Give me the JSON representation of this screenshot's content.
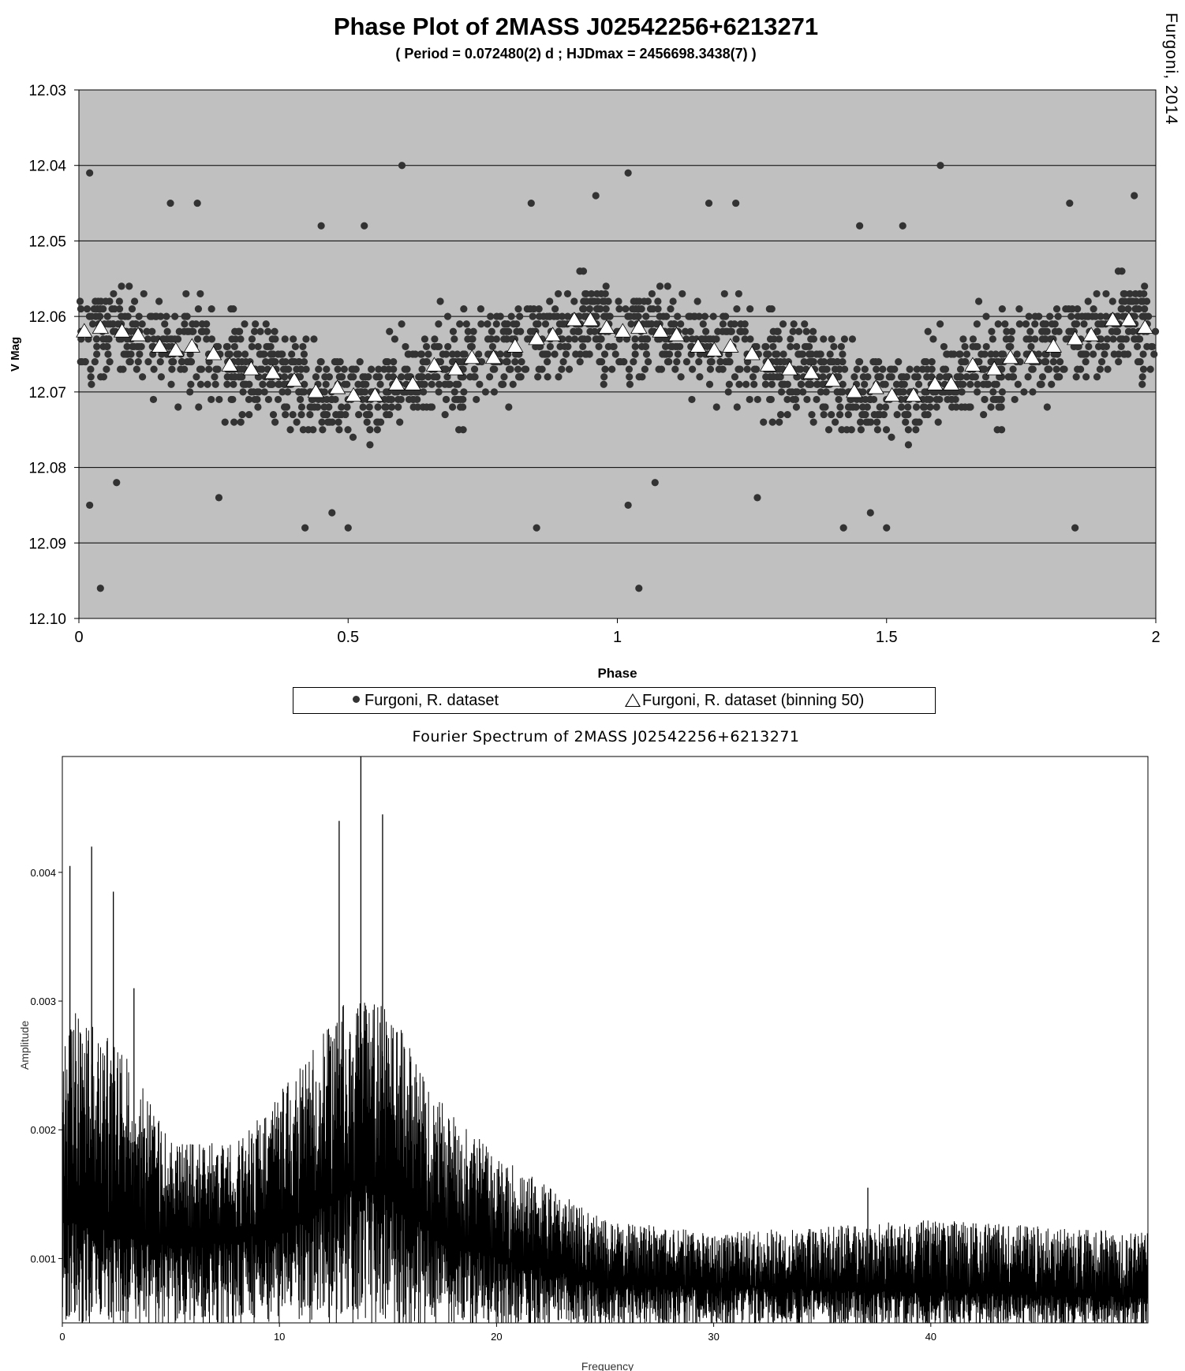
{
  "credit": "Furgoni, 2014",
  "chart_data": [
    {
      "type": "scatter",
      "title": "Phase Plot of 2MASS J02542256+6213271",
      "subtitle": "( Period = 0.072480(2) d ; HJDmax = 2456698.3438(7) )",
      "xlabel": "Phase",
      "ylabel": "V Mag",
      "xlim": [
        0,
        2
      ],
      "ylim": [
        12.03,
        12.1
      ],
      "y_inverted": true,
      "x_ticks": [
        "0",
        "0.5",
        "1",
        "1.5",
        "2"
      ],
      "y_ticks": [
        "12.03",
        "12.04",
        "12.05",
        "12.06",
        "12.07",
        "12.08",
        "12.09",
        "12.10"
      ],
      "grid": "horizontal",
      "background": "#c0c0c0",
      "legend_position": "bottom",
      "series": [
        {
          "name": "Furgoni, R. dataset",
          "marker": "filled-circle",
          "color": "#333333",
          "approx_count": 900,
          "mean_curve_ref": "binned",
          "scatter_range": [
            12.052,
            12.082
          ],
          "outliers": [
            {
              "x": 0.02,
              "y": 12.041
            },
            {
              "x": 0.02,
              "y": 12.085
            },
            {
              "x": 0.04,
              "y": 12.096
            },
            {
              "x": 0.07,
              "y": 12.082
            },
            {
              "x": 0.17,
              "y": 12.045
            },
            {
              "x": 0.22,
              "y": 12.045
            },
            {
              "x": 0.26,
              "y": 12.084
            },
            {
              "x": 0.42,
              "y": 12.088
            },
            {
              "x": 0.45,
              "y": 12.048
            },
            {
              "x": 0.47,
              "y": 12.086
            },
            {
              "x": 0.5,
              "y": 12.088
            },
            {
              "x": 0.53,
              "y": 12.048
            },
            {
              "x": 0.6,
              "y": 12.04
            },
            {
              "x": 0.85,
              "y": 12.088
            },
            {
              "x": 0.84,
              "y": 12.045
            },
            {
              "x": 0.96,
              "y": 12.044
            },
            {
              "x": 1.02,
              "y": 12.041
            },
            {
              "x": 1.02,
              "y": 12.085
            },
            {
              "x": 1.04,
              "y": 12.096
            },
            {
              "x": 1.07,
              "y": 12.082
            },
            {
              "x": 1.17,
              "y": 12.045
            },
            {
              "x": 1.22,
              "y": 12.045
            },
            {
              "x": 1.26,
              "y": 12.084
            },
            {
              "x": 1.42,
              "y": 12.088
            },
            {
              "x": 1.45,
              "y": 12.048
            },
            {
              "x": 1.47,
              "y": 12.086
            },
            {
              "x": 1.5,
              "y": 12.088
            },
            {
              "x": 1.53,
              "y": 12.048
            },
            {
              "x": 1.6,
              "y": 12.04
            },
            {
              "x": 1.85,
              "y": 12.088
            },
            {
              "x": 1.84,
              "y": 12.045
            },
            {
              "x": 1.96,
              "y": 12.044
            }
          ]
        },
        {
          "name": "Furgoni, R. dataset (binning 50)",
          "marker": "open-triangle",
          "color": "#ffffff",
          "points": [
            {
              "x": 0.01,
              "y": 12.062
            },
            {
              "x": 0.04,
              "y": 12.0615
            },
            {
              "x": 0.08,
              "y": 12.062
            },
            {
              "x": 0.11,
              "y": 12.0625
            },
            {
              "x": 0.15,
              "y": 12.064
            },
            {
              "x": 0.18,
              "y": 12.0645
            },
            {
              "x": 0.21,
              "y": 12.064
            },
            {
              "x": 0.25,
              "y": 12.065
            },
            {
              "x": 0.28,
              "y": 12.0665
            },
            {
              "x": 0.32,
              "y": 12.067
            },
            {
              "x": 0.36,
              "y": 12.0675
            },
            {
              "x": 0.4,
              "y": 12.0685
            },
            {
              "x": 0.44,
              "y": 12.07
            },
            {
              "x": 0.48,
              "y": 12.0695
            },
            {
              "x": 0.51,
              "y": 12.0705
            },
            {
              "x": 0.55,
              "y": 12.0705
            },
            {
              "x": 0.59,
              "y": 12.069
            },
            {
              "x": 0.62,
              "y": 12.069
            },
            {
              "x": 0.66,
              "y": 12.0665
            },
            {
              "x": 0.7,
              "y": 12.067
            },
            {
              "x": 0.73,
              "y": 12.0655
            },
            {
              "x": 0.77,
              "y": 12.0655
            },
            {
              "x": 0.81,
              "y": 12.064
            },
            {
              "x": 0.85,
              "y": 12.063
            },
            {
              "x": 0.88,
              "y": 12.0625
            },
            {
              "x": 0.92,
              "y": 12.0605
            },
            {
              "x": 0.95,
              "y": 12.0605
            },
            {
              "x": 0.98,
              "y": 12.0615
            }
          ],
          "repeats_with_period": 1
        }
      ]
    },
    {
      "type": "line",
      "title": "Fourier Spectrum of 2MASS J02542256+6213271",
      "xlabel": "Frequency",
      "ylabel": "Amplitude",
      "xlim": [
        0,
        50
      ],
      "ylim": [
        0.0005,
        0.0049
      ],
      "x_ticks": [
        "0",
        "10",
        "20",
        "30",
        "40"
      ],
      "y_ticks": [
        "0.001",
        "0.002",
        "0.003",
        "0.004"
      ],
      "grid": "off",
      "peaks": [
        {
          "x": 0.35,
          "y": 0.00405
        },
        {
          "x": 1.35,
          "y": 0.0042
        },
        {
          "x": 2.35,
          "y": 0.00385
        },
        {
          "x": 3.3,
          "y": 0.0031
        },
        {
          "x": 12.75,
          "y": 0.0044
        },
        {
          "x": 13.75,
          "y": 0.0049
        },
        {
          "x": 14.75,
          "y": 0.00445
        },
        {
          "x": 37.1,
          "y": 0.00155
        }
      ],
      "envelope": [
        {
          "x": 0,
          "y": 0.003
        },
        {
          "x": 3,
          "y": 0.0026
        },
        {
          "x": 5,
          "y": 0.0019
        },
        {
          "x": 8,
          "y": 0.0019
        },
        {
          "x": 11,
          "y": 0.0025
        },
        {
          "x": 13,
          "y": 0.003
        },
        {
          "x": 15,
          "y": 0.003
        },
        {
          "x": 17,
          "y": 0.0023
        },
        {
          "x": 20,
          "y": 0.0018
        },
        {
          "x": 25,
          "y": 0.0013
        },
        {
          "x": 30,
          "y": 0.0012
        },
        {
          "x": 40,
          "y": 0.0013
        },
        {
          "x": 50,
          "y": 0.0012
        }
      ],
      "baseline": [
        {
          "x": 0,
          "y": 0.0013
        },
        {
          "x": 5,
          "y": 0.0011
        },
        {
          "x": 10,
          "y": 0.0012
        },
        {
          "x": 14,
          "y": 0.0016
        },
        {
          "x": 18,
          "y": 0.0011
        },
        {
          "x": 25,
          "y": 0.0008
        },
        {
          "x": 50,
          "y": 0.0007
        }
      ]
    }
  ]
}
